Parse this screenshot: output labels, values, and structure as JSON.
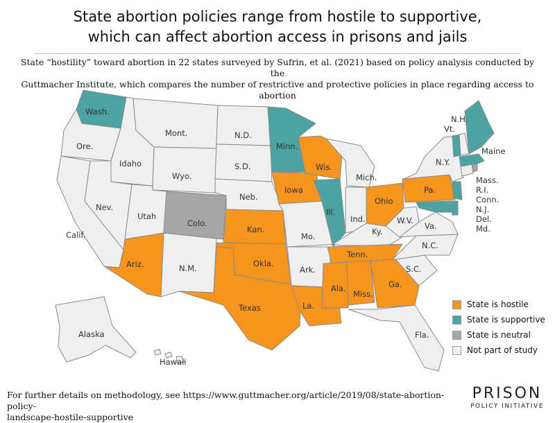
{
  "title_line1": "State abortion policies range from hostile to supportive,",
  "title_line2": "which can affect abortion access in prisons and jails",
  "subtitle_line1": "State “hostility” toward abortion in 22 states surveyed by Sufrin, et al. (2021) based on policy analysis conducted by the",
  "subtitle_line2": "Guttmacher Institute, which compares the number of restrictive and protective policies in place regarding access to abortion",
  "colors": {
    "hostile": "#f7941d",
    "supportive": "#4ba3a3",
    "neutral": "#a6a6a6",
    "not_studied": "#efefef",
    "border": "#8a8a8a"
  },
  "legend": {
    "hostile": "State is hostile",
    "supportive": "State is supportive",
    "neutral": "State is neutral",
    "not_studied": "Not part of study"
  },
  "states": {
    "wa": "Wash.",
    "or": "Ore.",
    "ca": "Calif.",
    "id": "Idaho",
    "nv": "Nev.",
    "mt": "Mont.",
    "wy": "Wyo.",
    "ut": "Utah",
    "co": "Colo.",
    "az": "Ariz.",
    "nm": "N.M.",
    "nd": "N.D.",
    "sd": "S.D.",
    "ne": "Neb.",
    "ks": "Kan.",
    "ok": "Okla.",
    "tx": "Texas",
    "mn": "Minn.",
    "ia": "Iowa",
    "mo": "Mo.",
    "ar": "Ark.",
    "la": "La.",
    "wi": "Wis.",
    "il": "Ill.",
    "mi": "Mich.",
    "in": "Ind.",
    "oh": "Ohio",
    "ky": "Ky.",
    "tn": "Tenn.",
    "ms": "Miss.",
    "al": "Ala.",
    "ga": "Ga.",
    "fl": "Fla.",
    "sc": "S.C.",
    "nc": "N.C.",
    "va": "Va.",
    "wv": "W.V.",
    "pa": "Pa.",
    "ny": "N.Y.",
    "vt": "Vt.",
    "nh": "N.H.",
    "me": "Maine",
    "ak": "Alaska",
    "hi": "Hawaii"
  },
  "northeast_list": [
    "Mass.",
    "R.I.",
    "Conn.",
    "N.J.",
    "Del.",
    "Md."
  ],
  "footnote_line1": "For further details on methodology, see https://www.guttmacher.org/article/2019/08/state-abortion-policy-",
  "footnote_line2": "landscape-hostile-supportive",
  "logo_top": "PRISON",
  "logo_bottom": "POLICY INITIATIVE"
}
